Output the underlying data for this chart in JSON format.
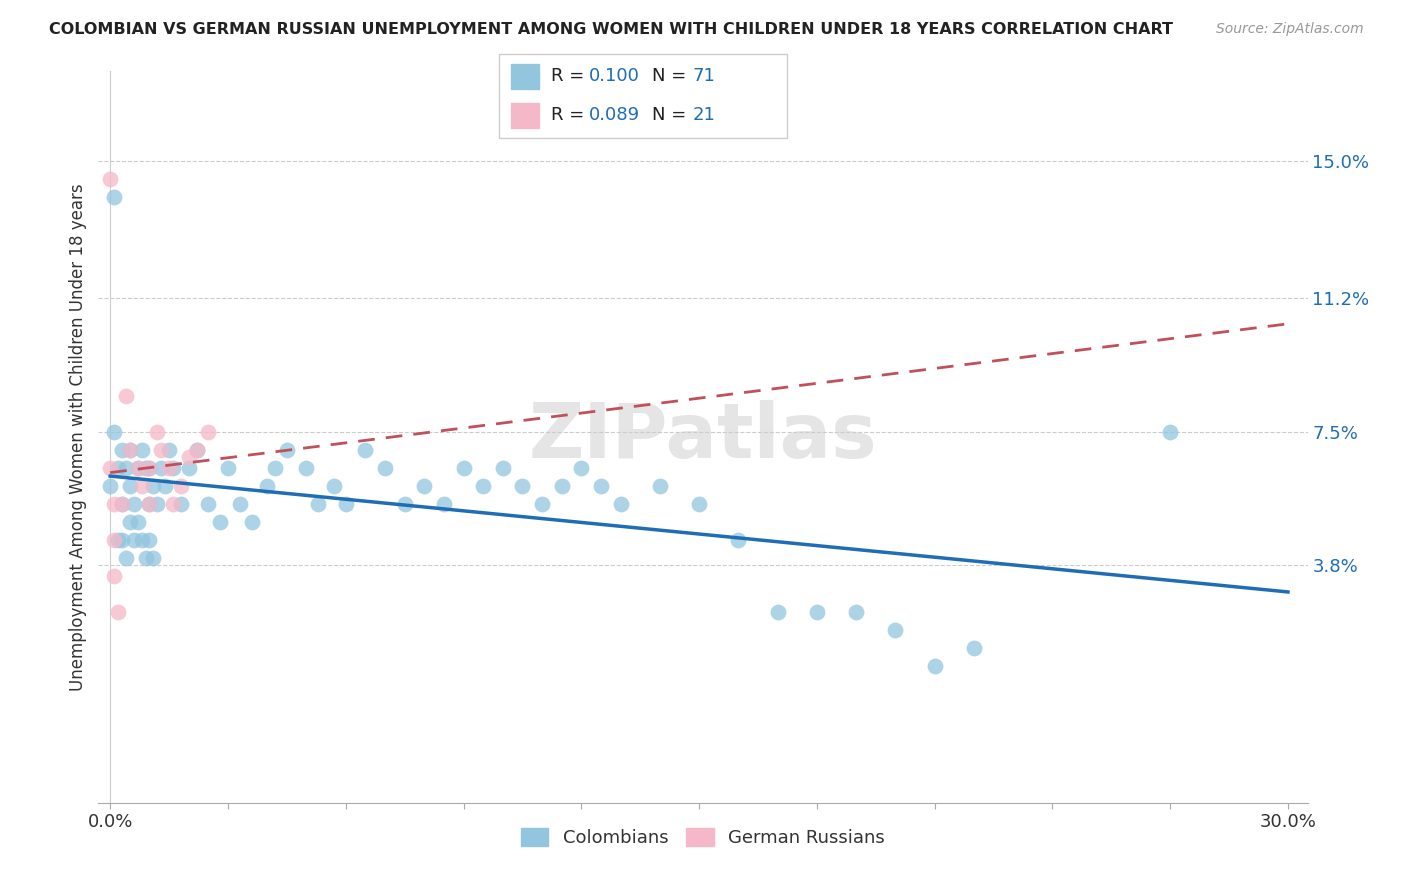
{
  "title": "COLOMBIAN VS GERMAN RUSSIAN UNEMPLOYMENT AMONG WOMEN WITH CHILDREN UNDER 18 YEARS CORRELATION CHART",
  "source": "Source: ZipAtlas.com",
  "ylabel": "Unemployment Among Women with Children Under 18 years",
  "colombian_R": 0.1,
  "colombian_N": 71,
  "german_russian_R": 0.089,
  "german_russian_N": 21,
  "scatter_color_colombian": "#92c5de",
  "scatter_color_german": "#f4b8c8",
  "line_color_colombian": "#1f6db5",
  "line_color_german": "#c0505a",
  "legend_color_colombian": "#92c5de",
  "legend_color_german": "#f4b8c8",
  "text_blue": "#1f6db5",
  "watermark": "ZIPatlas",
  "background_color": "#ffffff",
  "grid_color": "#cccccc",
  "ytick_vals": [
    0.038,
    0.075,
    0.112,
    0.15
  ],
  "ytick_labels": [
    "3.8%",
    "7.5%",
    "11.2%",
    "15.0%"
  ],
  "xlim": [
    -0.003,
    0.305
  ],
  "ylim": [
    -0.028,
    0.175
  ]
}
